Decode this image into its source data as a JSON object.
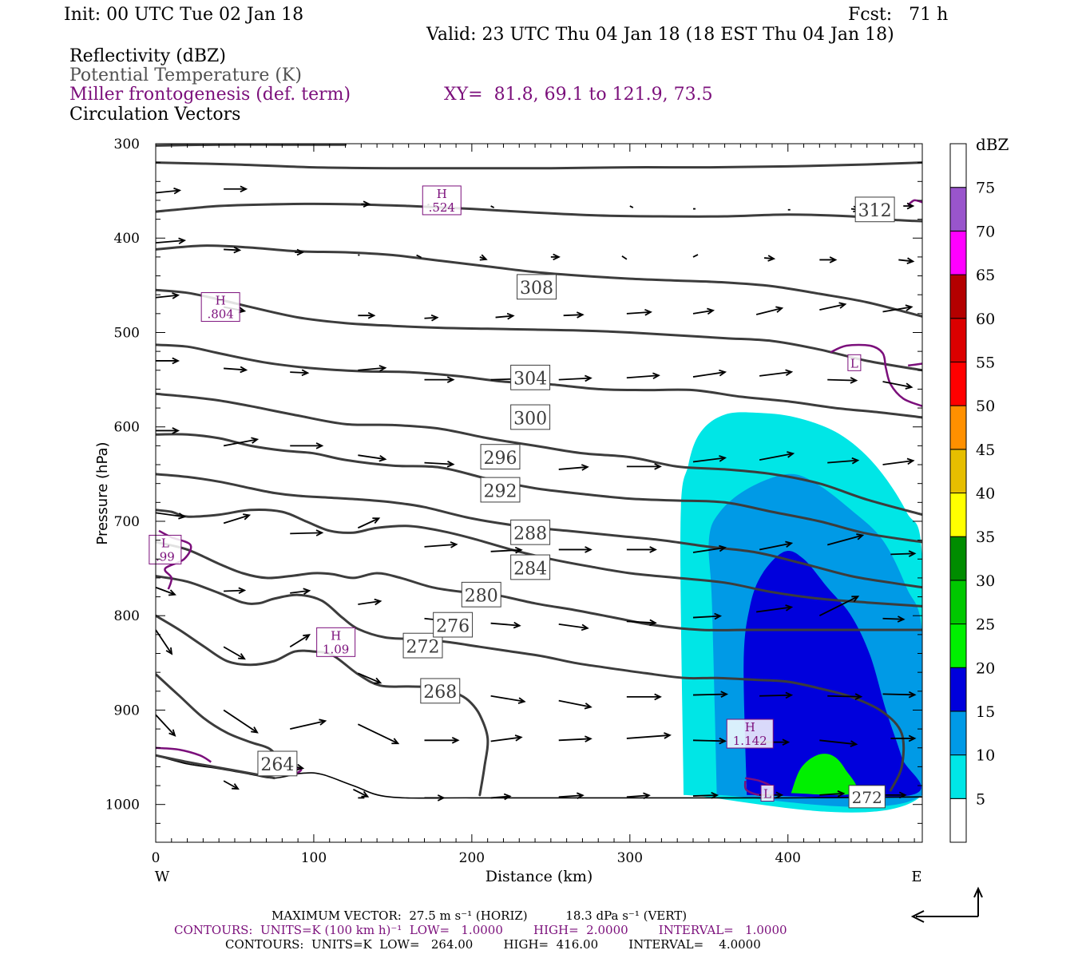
{
  "header": {
    "init": "Init: 00 UTC Tue 02 Jan 18",
    "fcst": "Fcst:   71 h",
    "valid": "Valid: 23 UTC Thu 04 Jan 18 (18 EST Thu 04 Jan 18)",
    "field1": "Reflectivity (dBZ)",
    "field2": "Potential Temperature (K)",
    "field3": "Miller frontogenesis (def. term)",
    "xy": "XY=  81.8, 69.1 to 121.9, 73.5",
    "field4": "Circulation Vectors"
  },
  "footer": {
    "max_vector": "MAXIMUM VECTOR:  27.5 m s⁻¹ (HORIZ)          18.3 dPa s⁻¹ (VERT)",
    "contours1": "CONTOURS:  UNITS=K (100 km h)⁻¹  LOW=   1.0000        HIGH=  2.0000        INTERVAL=   1.0000",
    "contours2": "CONTOURS:  UNITS=K  LOW=   264.00        HIGH=  416.00        INTERVAL=    4.0000"
  },
  "colors": {
    "theta": "#3c3c3c",
    "frontogenesis": "#7b0f7b",
    "vectors": "#000000",
    "terrain": "#000000"
  },
  "chart_data": {
    "type": "contour-cross-section",
    "xlabel": "Distance (km)",
    "ylabel": "Pressure (hPa)",
    "xlim": [
      0,
      485
    ],
    "ylim": [
      1040,
      300
    ],
    "x_ticks": [
      0,
      100,
      200,
      300,
      400
    ],
    "y_ticks": [
      300,
      400,
      500,
      600,
      700,
      800,
      900,
      1000
    ],
    "left_end_label": "W",
    "right_end_label": "E",
    "colorbar": {
      "title": "dBZ",
      "levels": [
        5,
        10,
        15,
        20,
        25,
        30,
        35,
        40,
        45,
        50,
        55,
        60,
        65,
        70,
        75
      ],
      "colors": [
        "#ffffff",
        "#00e6e6",
        "#009ae6",
        "#0000dc",
        "#00f000",
        "#00c800",
        "#008c00",
        "#ffff00",
        "#e6be00",
        "#ff9000",
        "#ff0000",
        "#dc0000",
        "#b40000",
        "#ff00ff",
        "#9955cc",
        "#ffffff"
      ]
    },
    "reflectivity_regions": [
      {
        "dbz": 5,
        "polygon": [
          [
            334,
            990
          ],
          [
            332,
            705
          ],
          [
            337,
            640
          ],
          [
            345,
            605
          ],
          [
            360,
            587
          ],
          [
            380,
            585
          ],
          [
            405,
            590
          ],
          [
            432,
            607
          ],
          [
            455,
            640
          ],
          [
            475,
            690
          ],
          [
            485,
            740
          ],
          [
            485,
            990
          ]
        ]
      },
      {
        "dbz": 10,
        "polygon": [
          [
            355,
            990
          ],
          [
            352,
            790
          ],
          [
            350,
            720
          ],
          [
            357,
            690
          ],
          [
            375,
            665
          ],
          [
            400,
            650
          ],
          [
            418,
            660
          ],
          [
            440,
            688
          ],
          [
            460,
            720
          ],
          [
            475,
            770
          ],
          [
            485,
            820
          ],
          [
            485,
            990
          ]
        ]
      },
      {
        "dbz": 15,
        "polygon": [
          [
            374,
            990
          ],
          [
            372,
            850
          ],
          [
            376,
            790
          ],
          [
            384,
            755
          ],
          [
            398,
            732
          ],
          [
            410,
            740
          ],
          [
            425,
            770
          ],
          [
            440,
            800
          ],
          [
            452,
            842
          ],
          [
            462,
            900
          ],
          [
            472,
            950
          ],
          [
            478,
            990
          ]
        ]
      },
      {
        "dbz": 20,
        "polygon": [
          [
            402,
            988
          ],
          [
            408,
            962
          ],
          [
            418,
            948
          ],
          [
            428,
            948
          ],
          [
            436,
            962
          ],
          [
            442,
            988
          ]
        ]
      }
    ],
    "theta_contours": [
      {
        "k": 264,
        "labeled_at": [
          77,
          957
        ]
      },
      {
        "k": 268,
        "labeled_at": [
          180,
          880
        ]
      },
      {
        "k": 272,
        "labeled_at": [
          169,
          832
        ]
      },
      {
        "k": 276,
        "labeled_at": [
          188,
          810
        ]
      },
      {
        "k": 280,
        "labeled_at": [
          206,
          778
        ]
      },
      {
        "k": 284,
        "labeled_at": [
          237,
          749
        ]
      },
      {
        "k": 288,
        "labeled_at": [
          237,
          712
        ]
      },
      {
        "k": 292,
        "labeled_at": [
          218,
          667
        ]
      },
      {
        "k": 296,
        "labeled_at": [
          218,
          632
        ]
      },
      {
        "k": 300,
        "labeled_at": [
          237,
          590
        ]
      },
      {
        "k": 304,
        "labeled_at": [
          237,
          548
        ]
      },
      {
        "k": 308,
        "labeled_at": [
          241,
          452
        ]
      },
      {
        "k": 312,
        "labeled_at": [
          455,
          370
        ]
      }
    ],
    "theta_labels": [
      "264",
      "268",
      "272",
      "276",
      "280",
      "284",
      "288",
      "292",
      "296",
      "300",
      "304",
      "308",
      "312"
    ],
    "extra_theta_label": {
      "text": "272",
      "at": [
        450,
        992
      ]
    },
    "frontogenesis_extrema": [
      {
        "type": "H",
        "value": ".804",
        "at": [
          41,
          473
        ]
      },
      {
        "type": "H",
        "value": ".524",
        "at": [
          181,
          360
        ]
      },
      {
        "type": "H",
        "value": "1.09",
        "at": [
          114,
          828
        ]
      },
      {
        "type": "H",
        "value": "1.142",
        "at": [
          376,
          925
        ]
      },
      {
        "type": "L",
        "value": "",
        "at": [
          442,
          532
        ]
      },
      {
        "type": "L",
        "value": "",
        "at": [
          387,
          988
        ]
      },
      {
        "type": "L",
        "value": ".99",
        "at": [
          6,
          730
        ]
      }
    ],
    "terrain_top_hpa": 993
  }
}
